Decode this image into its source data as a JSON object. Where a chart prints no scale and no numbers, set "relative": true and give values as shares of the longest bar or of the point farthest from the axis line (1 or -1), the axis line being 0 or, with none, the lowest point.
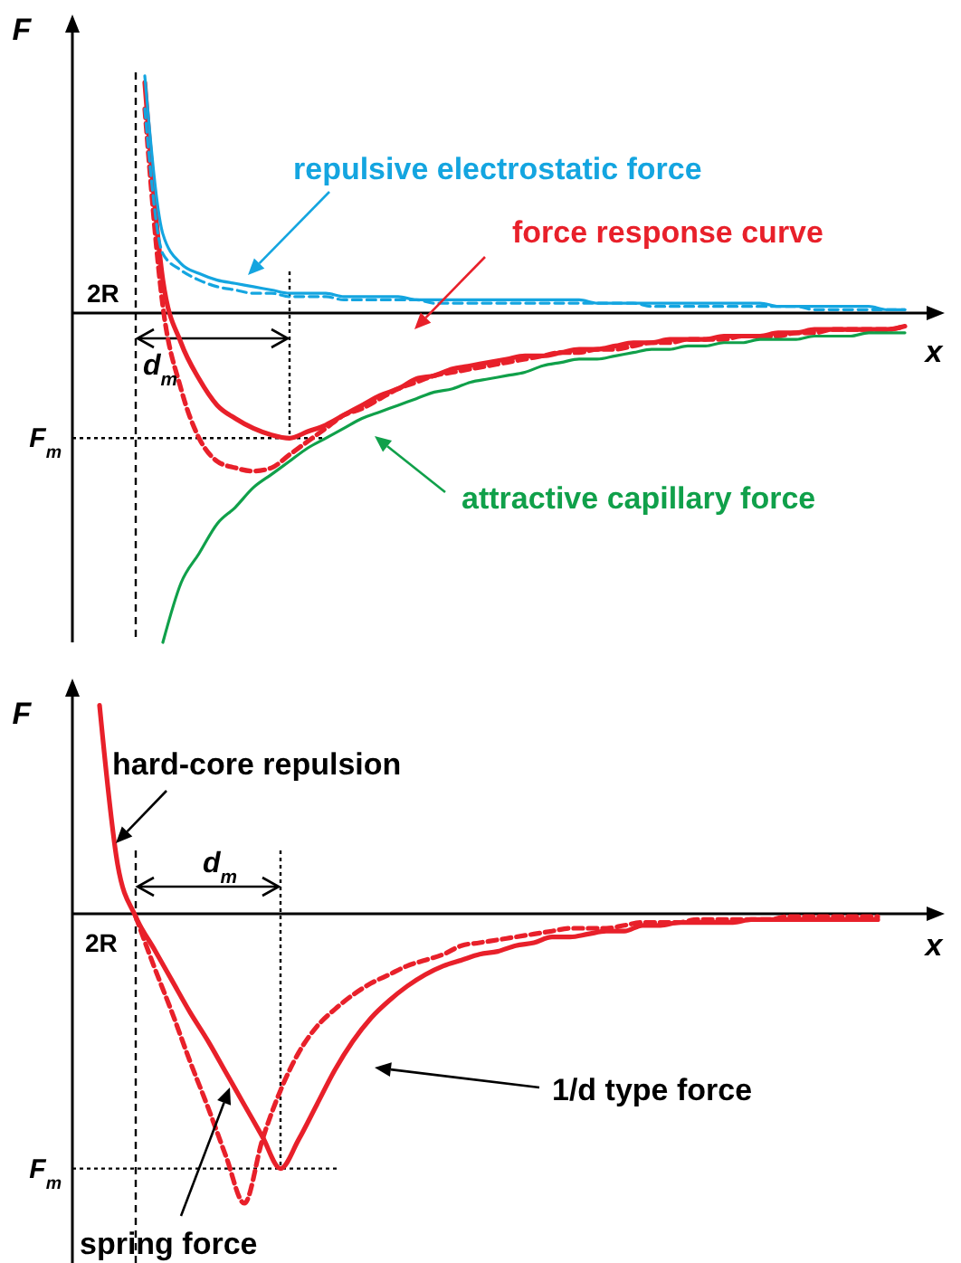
{
  "chart_data": [
    {
      "type": "line",
      "relative": true,
      "xlabel": "x",
      "ylabel": "F",
      "categories": [
        null,
        null,
        null,
        null,
        null,
        null,
        null,
        null,
        null,
        null,
        null,
        null,
        null,
        null,
        null,
        null,
        null,
        null,
        null,
        null,
        null,
        null,
        null,
        null,
        null,
        null,
        null,
        null,
        null,
        null,
        null,
        null,
        null,
        null,
        null,
        null,
        null,
        null,
        null,
        null,
        null,
        null,
        null,
        null,
        null,
        null
      ],
      "series": [
        {
          "name": "force response curve",
          "color": "#e8202a",
          "line_style": "solid",
          "values": [
            null,
            null,
            null,
            0.7,
            0.1,
            -0.09,
            -0.2,
            -0.28,
            -0.32,
            -0.35,
            -0.37,
            -0.38,
            -0.36,
            -0.34,
            -0.31,
            -0.28,
            -0.25,
            -0.23,
            -0.2,
            -0.19,
            -0.17,
            -0.16,
            -0.15,
            -0.14,
            -0.13,
            -0.13,
            -0.12,
            -0.11,
            -0.11,
            -0.1,
            -0.09,
            -0.09,
            -0.08,
            -0.08,
            -0.08,
            -0.07,
            -0.07,
            -0.07,
            -0.06,
            -0.06,
            -0.05,
            -0.05,
            -0.05,
            -0.05,
            -0.05,
            -0.04
          ]
        },
        {
          "color": "#e8202a",
          "line_style": "dashed",
          "values": [
            null,
            null,
            null,
            0.62,
            0.02,
            -0.23,
            -0.38,
            -0.45,
            -0.47,
            -0.48,
            -0.47,
            -0.43,
            -0.39,
            -0.35,
            -0.31,
            -0.29,
            -0.26,
            -0.23,
            -0.21,
            -0.19,
            -0.18,
            -0.17,
            -0.16,
            -0.15,
            -0.14,
            -0.13,
            -0.12,
            -0.12,
            -0.11,
            -0.11,
            -0.1,
            -0.09,
            -0.09,
            -0.08,
            -0.08,
            -0.08,
            -0.07,
            -0.07,
            -0.07,
            -0.06,
            -0.06,
            -0.05,
            -0.05,
            -0.05,
            -0.05,
            -0.04
          ]
        },
        {
          "name": "repulsive electrostatic force",
          "color": "#14a5e0",
          "line_style": "solid",
          "values": [
            null,
            null,
            null,
            0.72,
            0.24,
            0.15,
            0.12,
            0.1,
            0.09,
            0.08,
            0.07,
            0.06,
            0.06,
            0.06,
            0.05,
            0.05,
            0.05,
            0.05,
            0.04,
            0.04,
            0.04,
            0.04,
            0.04,
            0.04,
            0.04,
            0.04,
            0.04,
            0.04,
            0.03,
            0.03,
            0.03,
            0.03,
            0.03,
            0.03,
            0.03,
            0.03,
            0.03,
            0.03,
            0.02,
            0.02,
            0.02,
            0.02,
            0.02,
            0.02,
            0.01,
            0.01
          ]
        },
        {
          "color": "#14a5e0",
          "line_style": "dashed",
          "values": [
            null,
            null,
            null,
            0.62,
            0.18,
            0.13,
            0.1,
            0.08,
            0.07,
            0.06,
            0.06,
            0.05,
            0.05,
            0.05,
            0.04,
            0.04,
            0.04,
            0.04,
            0.04,
            0.03,
            0.03,
            0.03,
            0.03,
            0.03,
            0.03,
            0.03,
            0.03,
            0.03,
            0.03,
            0.03,
            0.03,
            0.02,
            0.02,
            0.02,
            0.02,
            0.02,
            0.02,
            0.02,
            0.02,
            0.02,
            0.01,
            0.01,
            0.01,
            0.01,
            0.01,
            0.01
          ]
        },
        {
          "name": "attractive capillary force",
          "color": "#10a04a",
          "line_style": "solid",
          "values": [
            null,
            null,
            null,
            null,
            -1.0,
            -0.82,
            -0.73,
            -0.64,
            -0.59,
            -0.53,
            -0.49,
            -0.45,
            -0.41,
            -0.38,
            -0.35,
            -0.32,
            -0.3,
            -0.28,
            -0.26,
            -0.24,
            -0.23,
            -0.21,
            -0.2,
            -0.19,
            -0.18,
            -0.16,
            -0.15,
            -0.14,
            -0.14,
            -0.13,
            -0.12,
            -0.11,
            -0.11,
            -0.1,
            -0.1,
            -0.09,
            -0.09,
            -0.08,
            -0.08,
            -0.08,
            -0.07,
            -0.07,
            -0.07,
            -0.06,
            -0.06,
            -0.06
          ]
        }
      ],
      "ref_lines": [
        {
          "axis": "y",
          "value": -0.38,
          "label": "F$_{m}$",
          "line_style": "dotted"
        }
      ],
      "annotations": [
        "2R",
        "d$_{m}$"
      ]
    },
    {
      "type": "line",
      "relative": true,
      "xlabel": "x",
      "ylabel": "F",
      "categories": [
        null,
        null,
        null,
        null,
        null,
        null,
        null,
        null,
        null,
        null,
        null,
        null,
        null,
        null,
        null,
        null,
        null,
        null,
        null,
        null,
        null,
        null,
        null,
        null,
        null,
        null,
        null,
        null,
        null,
        null,
        null,
        null,
        null,
        null,
        null,
        null,
        null,
        null,
        null,
        null,
        null,
        null,
        null,
        null,
        null
      ],
      "series": [
        {
          "color": "#e8202a",
          "line_style": "solid",
          "values": [
            0.72,
            0.17,
            -0.01,
            -0.12,
            -0.23,
            -0.34,
            -0.44,
            -0.55,
            -0.66,
            -0.77,
            -0.88,
            -0.78,
            -0.66,
            -0.54,
            -0.44,
            -0.36,
            -0.3,
            -0.25,
            -0.21,
            -0.18,
            -0.16,
            -0.14,
            -0.13,
            -0.11,
            -0.1,
            -0.08,
            -0.08,
            -0.07,
            -0.06,
            -0.06,
            -0.04,
            -0.04,
            -0.03,
            -0.03,
            -0.03,
            -0.03,
            -0.02,
            -0.02,
            -0.02,
            -0.02,
            -0.02,
            -0.02,
            -0.02,
            -0.02,
            null
          ]
        },
        {
          "color": "#e8202a",
          "line_style": "dashed",
          "values": [
            null,
            null,
            -0.01,
            -0.18,
            -0.34,
            -0.51,
            -0.67,
            -0.84,
            -1.0,
            -0.78,
            -0.61,
            -0.48,
            -0.39,
            -0.33,
            -0.28,
            -0.24,
            -0.21,
            -0.18,
            -0.16,
            -0.14,
            -0.11,
            -0.1,
            -0.09,
            -0.08,
            -0.07,
            -0.06,
            -0.05,
            -0.05,
            -0.05,
            -0.04,
            -0.03,
            -0.03,
            -0.03,
            -0.02,
            -0.02,
            -0.02,
            -0.02,
            -0.02,
            -0.01,
            -0.01,
            -0.01,
            -0.01,
            -0.01,
            -0.01,
            null
          ]
        }
      ],
      "ref_lines": [
        {
          "axis": "y",
          "value": -0.88,
          "label": "F$_{m}$",
          "line_style": "dotted"
        }
      ],
      "annotations": [
        "2R",
        "d$_{m}$",
        "hard-core repulsion",
        "1/d type force",
        "spring force"
      ]
    }
  ]
}
